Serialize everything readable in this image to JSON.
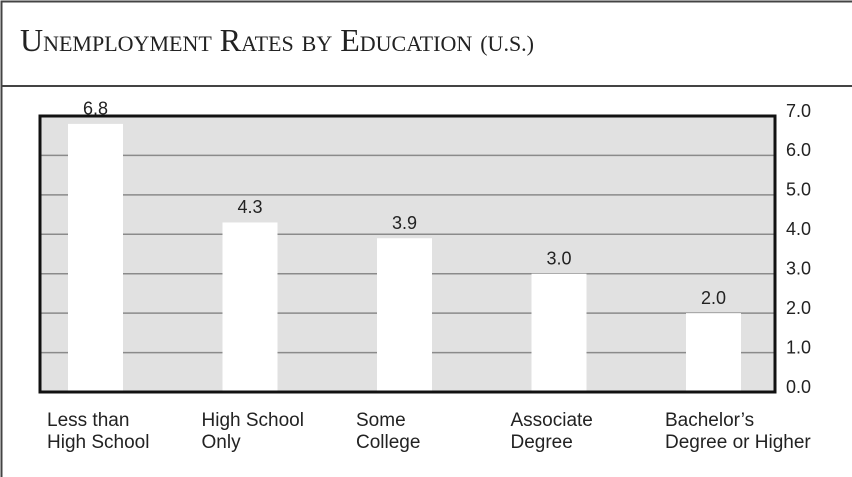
{
  "chart_data": {
    "type": "bar",
    "title": "Unemployment Rates by Education",
    "title_note": "(U.S.)",
    "categories": [
      "Less than\nHigh School",
      "High School\nOnly",
      "Some\nCollege",
      "Associate\nDegree",
      "Bachelor’s\nDegree or Higher"
    ],
    "values": [
      6.8,
      4.3,
      3.9,
      3,
      2
    ],
    "value_labels": [
      "6.8",
      "4.3",
      "3.9",
      "3.0",
      "2.0"
    ],
    "color": "#ffffff",
    "plot_color": "#e1e1e1",
    "ylim": [
      0,
      7
    ],
    "yticks": [
      {
        "value": 0,
        "label": "0.0"
      },
      {
        "value": 1,
        "label": "1.0"
      },
      {
        "value": 2,
        "label": "2.0"
      },
      {
        "value": 3,
        "label": "3.0"
      },
      {
        "value": 4,
        "label": "4.0"
      },
      {
        "value": 5,
        "label": "5.0"
      },
      {
        "value": 6,
        "label": "6.0"
      },
      {
        "value": 7,
        "label": "7.0"
      }
    ],
    "grid": true
  }
}
